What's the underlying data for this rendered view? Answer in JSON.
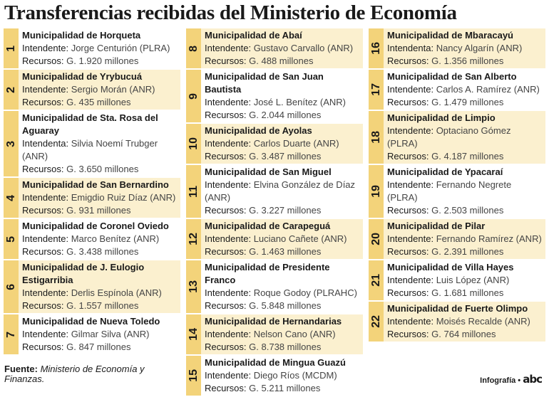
{
  "title": "Transferencias recibidas del Ministerio de Economía",
  "columns": [
    {
      "items": [
        {
          "num": "1",
          "name": "Municipalidad de Horqueta",
          "role": "Intendente:",
          "person": "Jorge Centurión (PLRA)",
          "res_label": "Recursos:",
          "res": "G. 1.920 millones"
        },
        {
          "num": "2",
          "name": "Municipalidad de Yrybucuá",
          "role": "Intendente:",
          "person": "Sergio Morán (ANR)",
          "res_label": "Recursos:",
          "res": "G. 435 millones"
        },
        {
          "num": "3",
          "name": "Municipalidad de Sta. Rosa del Aguaray",
          "role": "Intendenta:",
          "person": "Silvia Noemí Trubger (ANR)",
          "res_label": "Recursos:",
          "res": "G. 3.650 millones"
        },
        {
          "num": "4",
          "name": "Municipalidad de San Bernardino",
          "role": "Intendente:",
          "person": "Emigdio Ruiz Díaz (ANR)",
          "res_label": "Recursos:",
          "res": "G. 931 millones"
        },
        {
          "num": "5",
          "name": "Municipalidad de Coronel Oviedo",
          "role": "Intendente:",
          "person": "Marco Benítez (ANR)",
          "res_label": "Recursos:",
          "res": "G. 3.438 millones"
        },
        {
          "num": "6",
          "name": "Municipalidad de J. Eulogio Estigarribia",
          "role": "Intendente:",
          "person": "Derlis Espínola (ANR)",
          "res_label": "Recursos:",
          "res": "G. 1.557 millones"
        },
        {
          "num": "7",
          "name": "Municipalidad de Nueva Toledo",
          "role": "Intendente:",
          "person": "Gilmar Silva (ANR)",
          "res_label": "Recursos:",
          "res": "G. 847 millones"
        }
      ]
    },
    {
      "items": [
        {
          "num": "8",
          "name": "Municipalidad de Abaí",
          "role": "Intendente:",
          "person": "Gustavo Carvallo (ANR)",
          "res_label": "Recursos:",
          "res": "G. 488 millones"
        },
        {
          "num": "9",
          "name": "Municipalidad de San Juan Bautista",
          "role": "Intendente:",
          "person": "José L. Benítez (ANR)",
          "res_label": "Recursos:",
          "res": "G. 2.044 millones"
        },
        {
          "num": "10",
          "name": "Municipalidad de Ayolas",
          "role": "Intendente:",
          "person": "Carlos Duarte (ANR)",
          "res_label": "Recursos:",
          "res": "G. 3.487 millones"
        },
        {
          "num": "11",
          "name": "Municipalidad de San Miguel",
          "role": "Intendente:",
          "person": "Elvina González de Díaz (ANR)",
          "res_label": "Recursos:",
          "res": "G. 3.227 millones"
        },
        {
          "num": "12",
          "name": "Municipalidad de Carapeguá",
          "role": "Intendente:",
          "person": "Luciano Cañete (ANR)",
          "res_label": "Recursos:",
          "res": "G. 1.463 millones"
        },
        {
          "num": "13",
          "name": "Municipalidad de Presidente Franco",
          "role": "Intendente:",
          "person": "Roque Godoy (PLRAHC)",
          "res_label": "Recursos:",
          "res": "G. 5.848 millones"
        },
        {
          "num": "14",
          "name": "Municipalidad de Hernandarias",
          "role": "Intendente:",
          "person": "Nelson Cano (ANR)",
          "res_label": "Recursos:",
          "res": "G. 8.738 millones"
        },
        {
          "num": "15",
          "name": "Municipalidad de Mingua Guazú",
          "role": "Intendente:",
          "person": "Diego Ríos (MCDM)",
          "res_label": "Recursos:",
          "res": "G. 5.211 millones"
        }
      ]
    },
    {
      "items": [
        {
          "num": "16",
          "name": "Municipalidad de Mbaracayú",
          "role": "Intendenta:",
          "person": "Nancy Algarín (ANR)",
          "res_label": "Recursos:",
          "res": "G. 1.356 millones"
        },
        {
          "num": "17",
          "name": "Municipalidad de San Alberto",
          "role": "Intendente:",
          "person": "Carlos A. Ramírez (ANR)",
          "res_label": "Recursos:",
          "res": "G. 1.479 millones"
        },
        {
          "num": "18",
          "name": "Municipalidad de Limpio",
          "role": "Intendente:",
          "person": "Optaciano Gómez (PLRA)",
          "res_label": "Recursos:",
          "res": "G. 4.187 millones"
        },
        {
          "num": "19",
          "name": "Municipalidad de Ypacaraí",
          "role": "Intendente:",
          "person": "Fernando Negrete (PLRA)",
          "res_label": "Recursos:",
          "res": "G. 2.503 millones"
        },
        {
          "num": "20",
          "name": "Municipalidad de Pilar",
          "role": "Intendente:",
          "person": "Fernando Ramírez (ANR)",
          "res_label": "Recursos:",
          "res": "G. 2.391 millones"
        },
        {
          "num": "21",
          "name": "Municipalidad de Villa Hayes",
          "role": "Intendente:",
          "person": "Luis López (ANR)",
          "res_label": "Recursos:",
          "res": "G. 1.681 millones"
        },
        {
          "num": "22",
          "name": "Municipalidad de Fuerte Olimpo",
          "role": "Intendente:",
          "person": "Moisés Recalde (ANR)",
          "res_label": "Recursos:",
          "res": "G. 764 millones"
        }
      ]
    }
  ],
  "footer": {
    "source_label": "Fuente:",
    "source": "Ministerio de Economía y Finanzas.",
    "credit": "Infografía •",
    "brand": "abc"
  }
}
